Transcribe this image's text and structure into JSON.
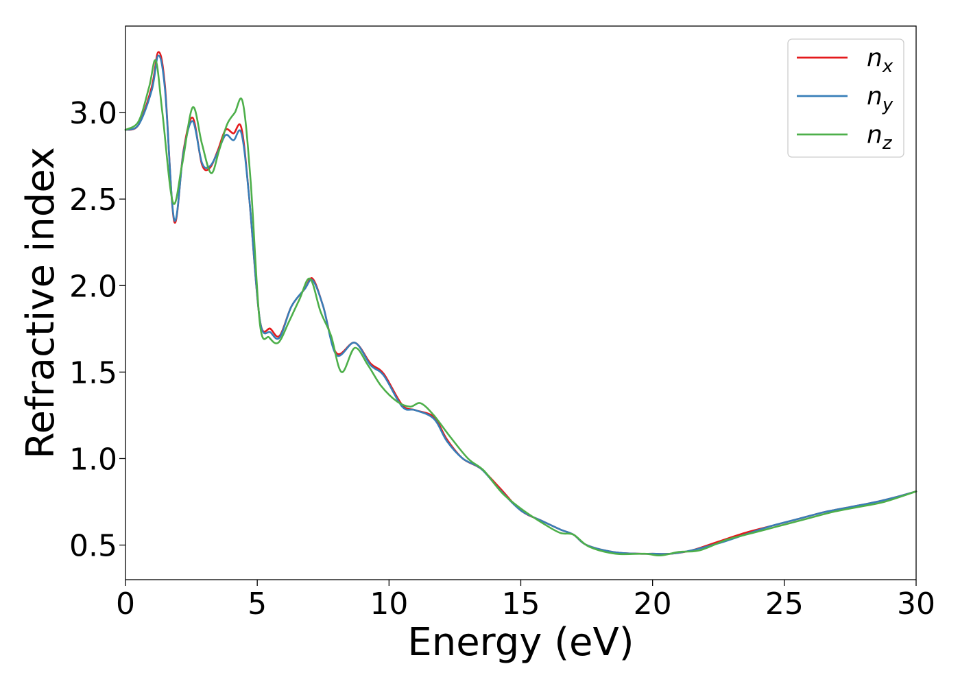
{
  "chart_data": {
    "type": "line",
    "xlabel": "Energy (eV)",
    "ylabel": "Refractive index",
    "xlim": [
      0,
      30
    ],
    "ylim": [
      0.3,
      3.5
    ],
    "xticks": [
      0,
      5,
      10,
      15,
      20,
      25,
      30
    ],
    "xtick_labels": [
      "0",
      "5",
      "10",
      "15",
      "20",
      "25",
      "30"
    ],
    "yticks": [
      0.5,
      1.0,
      1.5,
      2.0,
      2.5,
      3.0
    ],
    "ytick_labels": [
      "0.5",
      "1.0",
      "1.5",
      "2.0",
      "2.5",
      "3.0"
    ],
    "grid": false,
    "legend": {
      "placement": "top-right"
    },
    "series": [
      {
        "name": "n_x",
        "label_base": "n",
        "label_sub": "x",
        "color": "#e41a1c",
        "x": [
          0,
          0.5,
          1.0,
          1.25,
          1.5,
          1.85,
          2.2,
          2.55,
          2.9,
          3.2,
          3.5,
          3.8,
          4.1,
          4.4,
          4.7,
          5.1,
          5.5,
          5.85,
          6.3,
          6.8,
          7.1,
          7.5,
          8.0,
          8.7,
          9.3,
          9.8,
          10.5,
          11.0,
          11.7,
          12.2,
          12.8,
          13.5,
          14.2,
          15.0,
          15.8,
          16.5,
          17.0,
          17.5,
          18.5,
          19.5,
          20.0,
          20.7,
          21.5,
          22.5,
          23.5,
          24.5,
          25.5,
          26.5,
          27.5,
          28.5,
          29.3,
          30.0
        ],
        "y": [
          2.9,
          2.93,
          3.15,
          3.35,
          3.15,
          2.37,
          2.78,
          2.97,
          2.7,
          2.68,
          2.78,
          2.9,
          2.88,
          2.91,
          2.5,
          1.8,
          1.75,
          1.71,
          1.88,
          1.98,
          2.04,
          1.88,
          1.61,
          1.67,
          1.55,
          1.49,
          1.31,
          1.28,
          1.24,
          1.11,
          1.0,
          0.94,
          0.83,
          0.7,
          0.64,
          0.59,
          0.56,
          0.5,
          0.46,
          0.45,
          0.45,
          0.45,
          0.47,
          0.52,
          0.57,
          0.61,
          0.65,
          0.69,
          0.72,
          0.75,
          0.78,
          0.81
        ]
      },
      {
        "name": "n_y",
        "label_base": "n",
        "label_sub": "y",
        "color": "#377eb8",
        "x": [
          0,
          0.5,
          1.0,
          1.25,
          1.5,
          1.85,
          2.2,
          2.55,
          2.9,
          3.2,
          3.5,
          3.8,
          4.1,
          4.4,
          4.7,
          5.1,
          5.5,
          5.85,
          6.3,
          6.8,
          7.1,
          7.5,
          8.0,
          8.7,
          9.3,
          9.8,
          10.5,
          11.0,
          11.7,
          12.2,
          12.8,
          13.5,
          14.2,
          15.0,
          15.8,
          16.5,
          17.0,
          17.5,
          18.5,
          19.5,
          20.0,
          20.7,
          21.5,
          22.5,
          23.5,
          24.5,
          25.5,
          26.5,
          27.5,
          28.5,
          29.3,
          30.0
        ],
        "y": [
          2.9,
          2.93,
          3.13,
          3.33,
          3.13,
          2.38,
          2.77,
          2.95,
          2.71,
          2.69,
          2.77,
          2.87,
          2.84,
          2.88,
          2.5,
          1.8,
          1.73,
          1.7,
          1.88,
          1.98,
          2.03,
          1.88,
          1.6,
          1.67,
          1.54,
          1.48,
          1.3,
          1.28,
          1.23,
          1.1,
          1.0,
          0.94,
          0.82,
          0.7,
          0.64,
          0.59,
          0.56,
          0.5,
          0.46,
          0.45,
          0.45,
          0.45,
          0.47,
          0.51,
          0.56,
          0.61,
          0.65,
          0.69,
          0.72,
          0.75,
          0.78,
          0.81
        ]
      },
      {
        "name": "n_z",
        "label_base": "n",
        "label_sub": "z",
        "color": "#4daf4a",
        "x": [
          0,
          0.5,
          0.9,
          1.15,
          1.4,
          1.8,
          2.15,
          2.55,
          2.9,
          3.25,
          3.55,
          3.85,
          4.15,
          4.45,
          4.75,
          5.1,
          5.45,
          5.8,
          6.2,
          6.6,
          7.0,
          7.4,
          7.8,
          8.2,
          8.7,
          9.2,
          9.7,
          10.3,
          10.8,
          11.2,
          11.7,
          12.3,
          13.0,
          13.6,
          14.3,
          15.1,
          15.9,
          16.5,
          17.0,
          17.6,
          18.6,
          19.7,
          20.3,
          21.0,
          21.8,
          22.8,
          23.8,
          24.8,
          25.8,
          26.8,
          27.8,
          28.8,
          30.0
        ],
        "y": [
          2.9,
          2.95,
          3.15,
          3.3,
          3.0,
          2.48,
          2.7,
          3.03,
          2.82,
          2.65,
          2.78,
          2.93,
          3.0,
          3.06,
          2.6,
          1.78,
          1.7,
          1.67,
          1.79,
          1.92,
          2.04,
          1.85,
          1.71,
          1.5,
          1.64,
          1.54,
          1.42,
          1.33,
          1.3,
          1.32,
          1.25,
          1.13,
          1.0,
          0.93,
          0.8,
          0.7,
          0.62,
          0.57,
          0.56,
          0.49,
          0.45,
          0.45,
          0.44,
          0.46,
          0.47,
          0.53,
          0.57,
          0.61,
          0.65,
          0.69,
          0.72,
          0.75,
          0.81
        ]
      }
    ]
  }
}
